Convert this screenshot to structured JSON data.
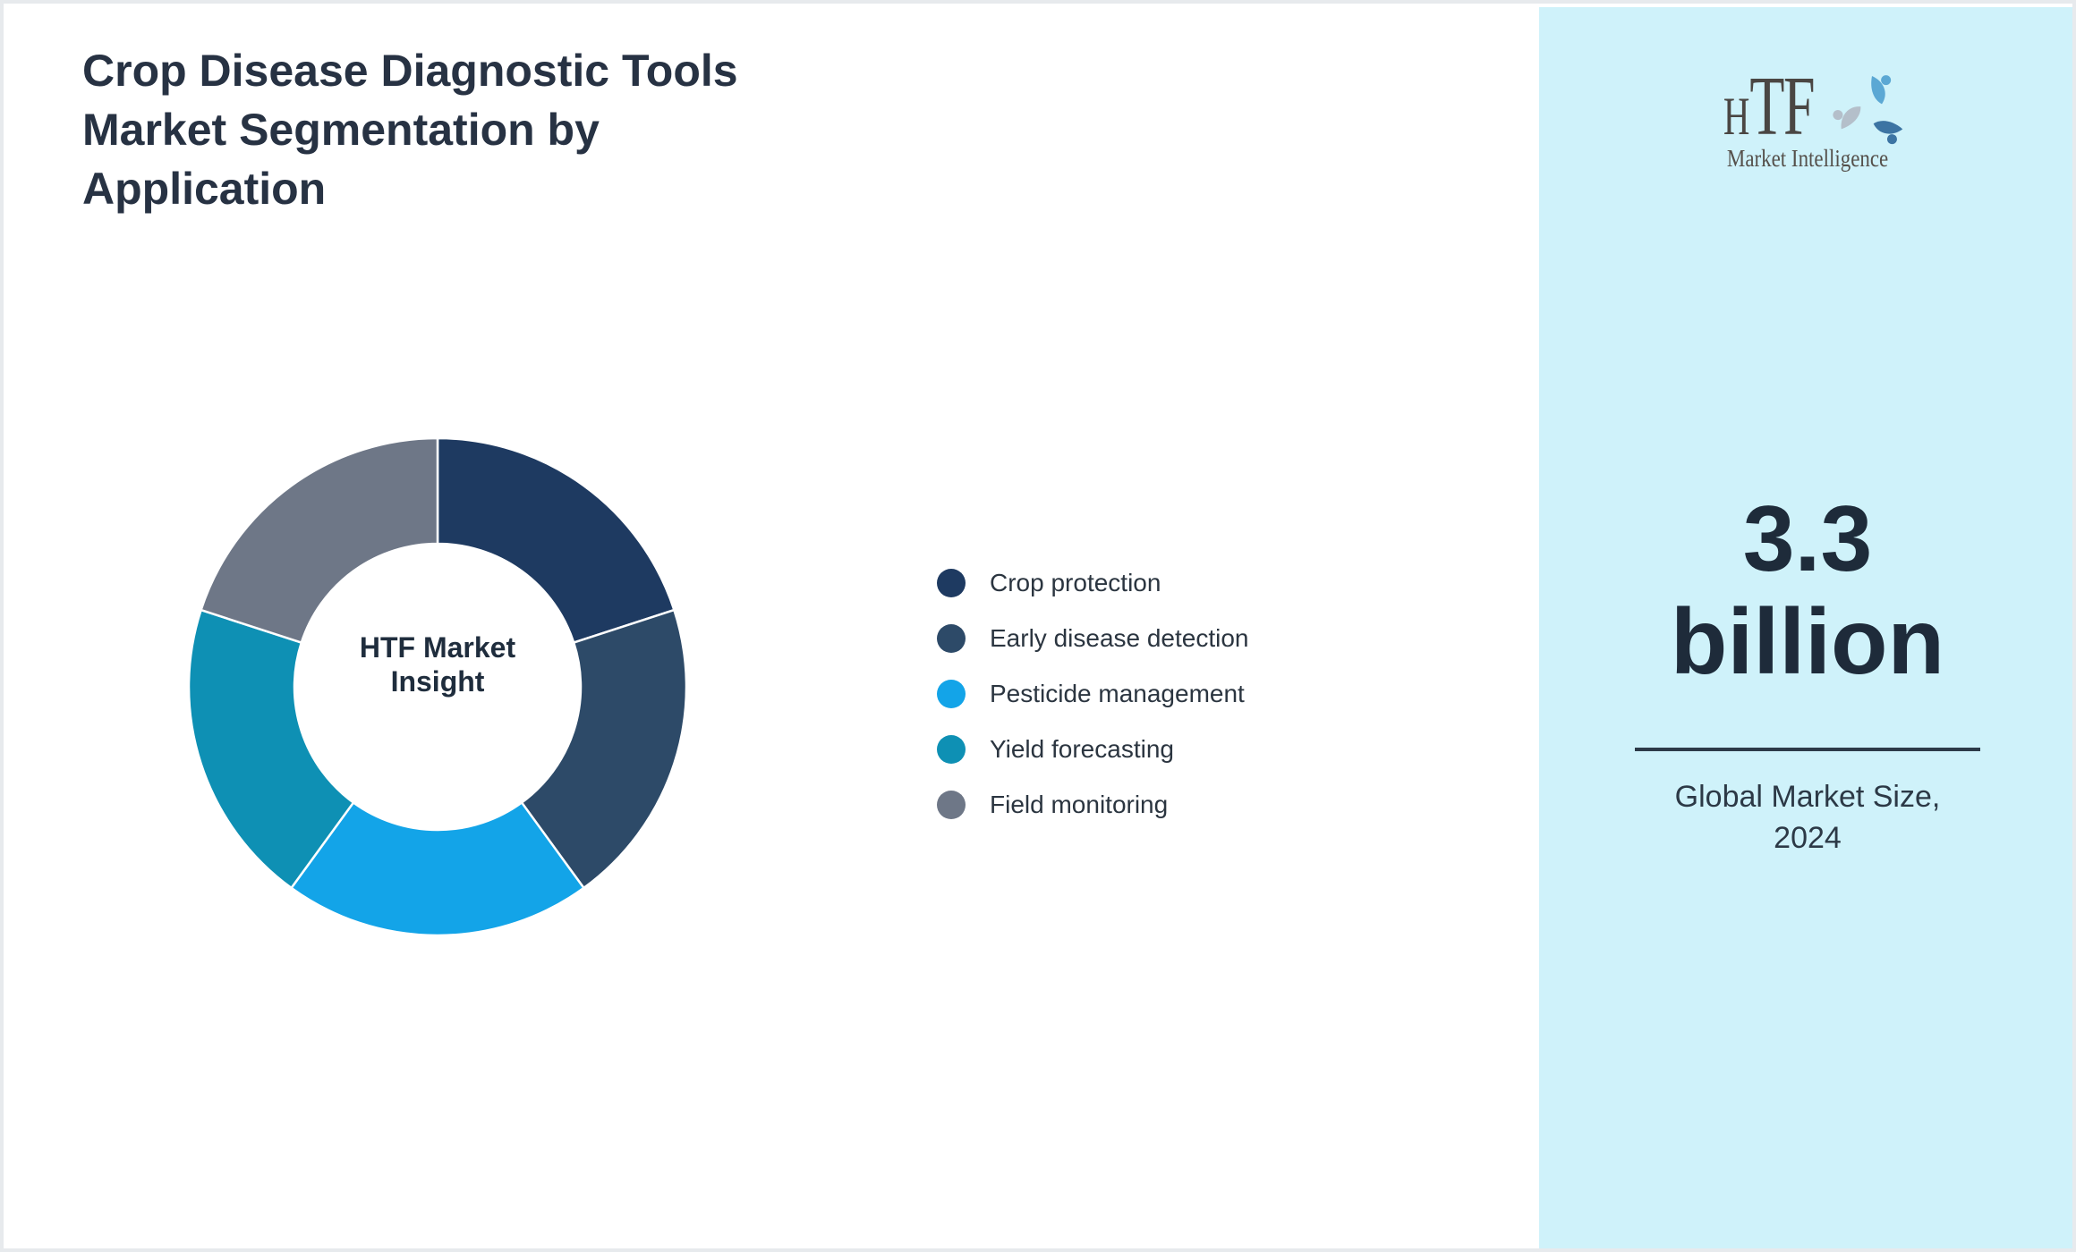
{
  "page": {
    "title_lines": [
      "Crop Disease Diagnostic Tools",
      "Market Segmentation by",
      "Application"
    ]
  },
  "chart_data": {
    "type": "pie",
    "donut": true,
    "title": "Crop Disease Diagnostic Tools Market Segmentation by Application",
    "center_label_lines": [
      "HTF Market",
      "Insight"
    ],
    "categories": [
      "Crop protection",
      "Early disease detection",
      "Pesticide management",
      "Yield forecasting",
      "Field monitoring"
    ],
    "values": [
      20,
      20,
      20,
      20,
      20
    ],
    "unit": "%",
    "colors": [
      "#1e3a61",
      "#2d4a68",
      "#13a4e8",
      "#0e90b4",
      "#6e7787"
    ],
    "start_angle_deg": 0,
    "direction": "clockwise",
    "inner_radius_ratio": 0.575,
    "legend_position": "right-of-chart",
    "separator_color": "#ffffff"
  },
  "sidebar": {
    "background_color": "#cff2fa",
    "logo": {
      "text": "HTF",
      "subtext": "Market Intelligence",
      "icon": "swirl-figures-icon",
      "icon_colors": [
        "#5ba8d4",
        "#3c74a3",
        "#b4bfca"
      ]
    },
    "stat": {
      "value_lines": [
        "3.3",
        "billion"
      ],
      "caption_lines": [
        "Global Market Size,",
        "2024"
      ]
    }
  }
}
